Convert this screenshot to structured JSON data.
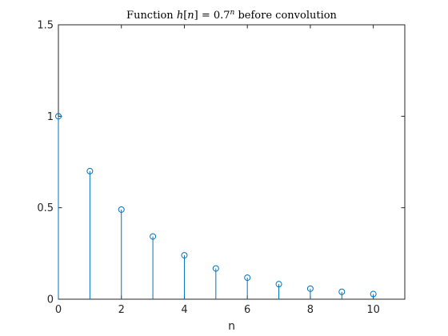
{
  "chart_data": {
    "type": "stem",
    "title": {
      "prefix": "Function ",
      "fn": "h",
      "lbr": "[",
      "var": "n",
      "rbr": "] = 0.7",
      "exp": "n",
      "suffix": " before convolution"
    },
    "xlabel": "n",
    "ylabel": "",
    "xlim": [
      0,
      11
    ],
    "ylim": [
      0,
      1.5
    ],
    "xticks": [
      0,
      2,
      4,
      6,
      8,
      10
    ],
    "xtick_labels": [
      "0",
      "2",
      "4",
      "6",
      "8",
      "10"
    ],
    "yticks": [
      0,
      0.5,
      1,
      1.5
    ],
    "ytick_labels": [
      "0",
      "0.5",
      "1",
      "1.5"
    ],
    "grid": false,
    "series": [
      {
        "x": [
          0,
          1,
          2,
          3,
          4,
          5,
          6,
          7,
          8,
          9,
          10
        ],
        "values": [
          1,
          0.7,
          0.49,
          0.343,
          0.2401,
          0.168,
          0.1176,
          0.0824,
          0.0576,
          0.0404,
          0.0282
        ],
        "color": "#0072BD",
        "marker": "circle"
      }
    ]
  }
}
